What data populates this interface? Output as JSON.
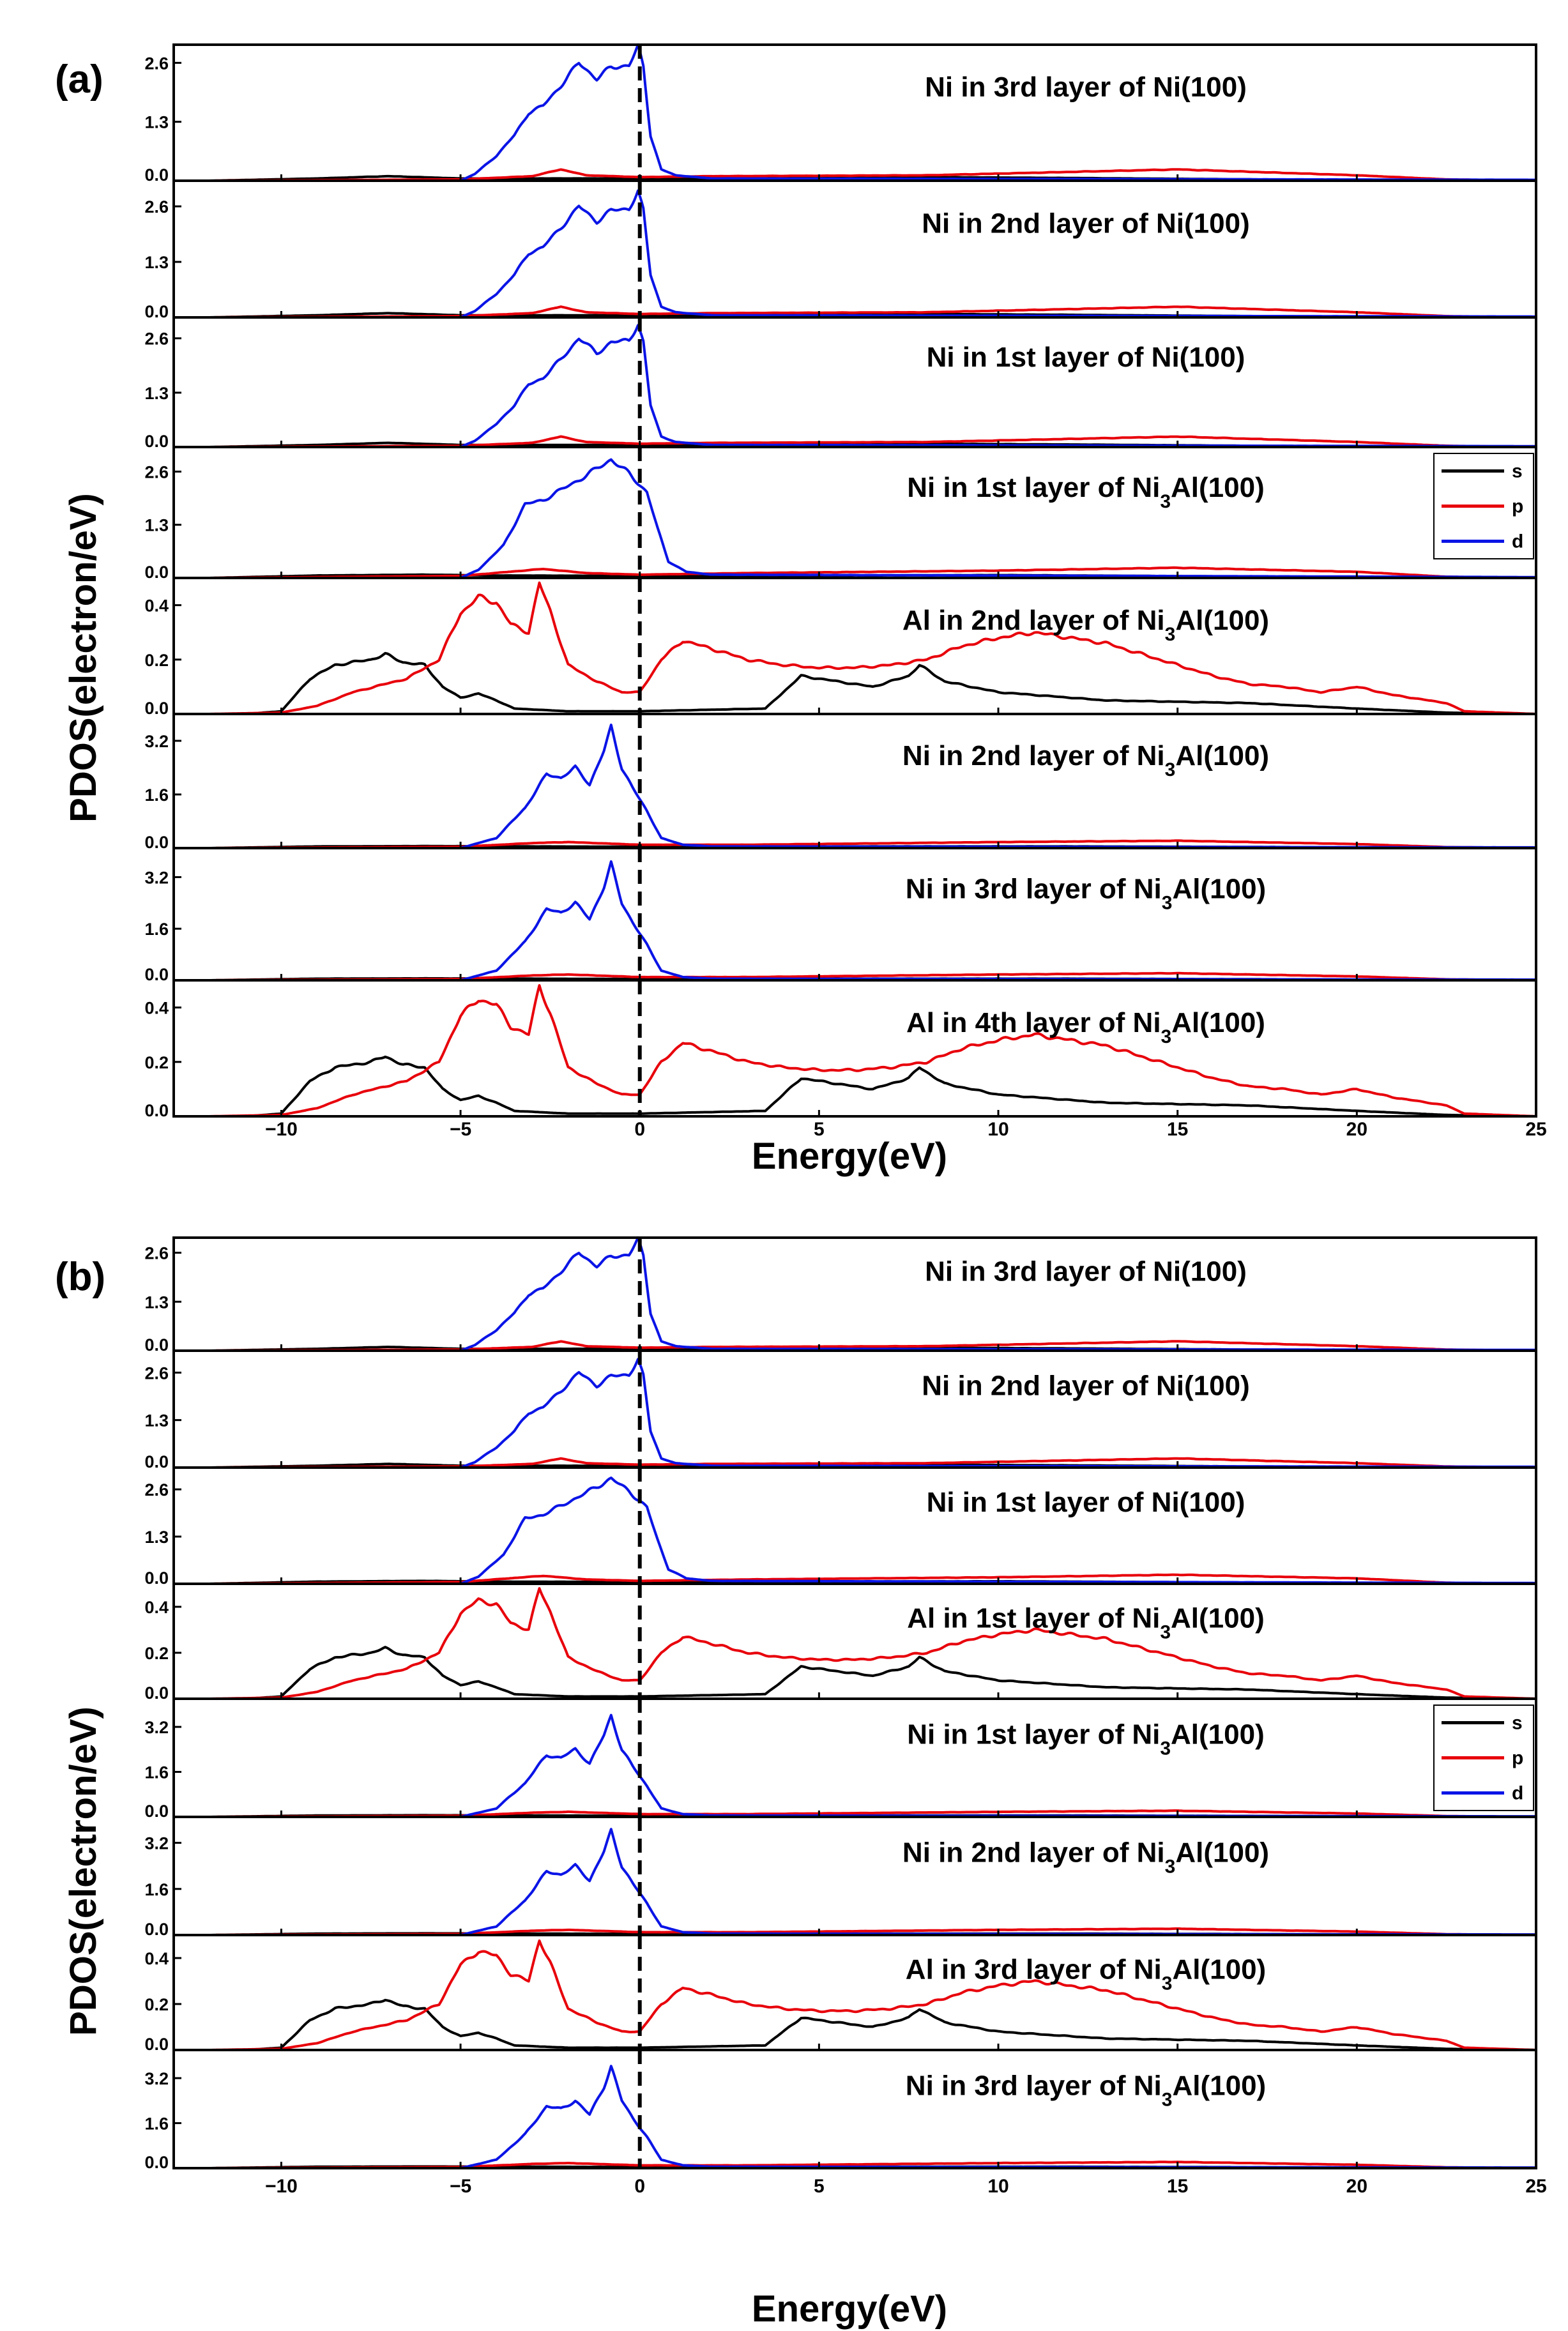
{
  "figure": {
    "xlabel": "Energy(eV)",
    "ylabel": "PDOS(electron/eV)",
    "xlim": [
      -13,
      25
    ],
    "x_ticks": [
      "−10",
      "−5",
      "0",
      "5",
      "10",
      "15",
      "20",
      "25"
    ],
    "x_tick_values": [
      -10,
      -5,
      0,
      5,
      10,
      15,
      20,
      25
    ],
    "fermi_line": 0,
    "legend_labels": [
      "s",
      "p",
      "d"
    ],
    "series_colors": {
      "s": "#000000",
      "p": "#e8000b",
      "d": "#0a14e6"
    }
  },
  "chart_data": [
    {
      "figure": "(a)",
      "type": "line",
      "panels": [
        {
          "title": "Ni in 3rd layer of Ni(100)",
          "shape": "ni",
          "ylim": [
            0,
            3.0
          ],
          "ticks": [
            0.0,
            1.3,
            2.6
          ],
          "tick_labels": [
            "0.0",
            "1.3",
            "2.6"
          ]
        },
        {
          "title": "Ni in 2nd layer of Ni(100)",
          "shape": "ni",
          "ylim": [
            0,
            3.2
          ],
          "ticks": [
            0.0,
            1.3,
            2.6
          ],
          "tick_labels": [
            "0.0",
            "1.3",
            "2.6"
          ]
        },
        {
          "title": "Ni in 1st layer of Ni(100)",
          "shape": "ni",
          "ylim": [
            0,
            3.1
          ],
          "ticks": [
            0.0,
            1.3,
            2.6
          ],
          "tick_labels": [
            "0.0",
            "1.3",
            "2.6"
          ]
        },
        {
          "title": "Ni in 1st layer of Ni3Al(100)",
          "shape": "ni3al_surf",
          "ylim": [
            0,
            3.2
          ],
          "ticks": [
            0.0,
            1.3,
            2.6
          ],
          "tick_labels": [
            "0.0",
            "1.3",
            "2.6"
          ],
          "legend": true
        },
        {
          "title": "Al in 2nd layer of Ni3Al(100)",
          "shape": "al",
          "ylim": [
            0,
            0.5
          ],
          "ticks": [
            0.0,
            0.2,
            0.4
          ],
          "tick_labels": [
            "0.0",
            "0.2",
            "0.4"
          ]
        },
        {
          "title": "Ni in 2nd layer of Ni3Al(100)",
          "shape": "ni3al",
          "ylim": [
            0,
            4.0
          ],
          "ticks": [
            0.0,
            1.6,
            3.2
          ],
          "tick_labels": [
            "0.0",
            "1.6",
            "3.2"
          ]
        },
        {
          "title": "Ni in 3rd layer of Ni3Al(100)",
          "shape": "ni3al",
          "ylim": [
            0,
            4.1
          ],
          "ticks": [
            0.0,
            1.6,
            3.2
          ],
          "tick_labels": [
            "0.0",
            "1.6",
            "3.2"
          ]
        },
        {
          "title": "Al in 4th layer of Ni3Al(100)",
          "shape": "al",
          "ylim": [
            0,
            0.5
          ],
          "ticks": [
            0.0,
            0.2,
            0.4
          ],
          "tick_labels": [
            "0.0",
            "0.2",
            "0.4"
          ]
        }
      ]
    },
    {
      "figure": "(b)",
      "type": "line",
      "panels": [
        {
          "title": "Ni in 3rd layer of Ni(100)",
          "shape": "ni",
          "ylim": [
            0,
            3.0
          ],
          "ticks": [
            0.0,
            1.3,
            2.6
          ],
          "tick_labels": [
            "0.0",
            "1.3",
            "2.6"
          ]
        },
        {
          "title": "Ni in 2nd layer of Ni(100)",
          "shape": "ni",
          "ylim": [
            0,
            3.2
          ],
          "ticks": [
            0.0,
            1.3,
            2.6
          ],
          "tick_labels": [
            "0.0",
            "1.3",
            "2.6"
          ]
        },
        {
          "title": "Ni in 1st layer of Ni(100)",
          "shape": "ni3al_surf",
          "ylim": [
            0,
            3.2
          ],
          "ticks": [
            0.0,
            1.3,
            2.6
          ],
          "tick_labels": [
            "0.0",
            "1.3",
            "2.6"
          ]
        },
        {
          "title": "Al in 1st layer of Ni3Al(100)",
          "shape": "al",
          "ylim": [
            0,
            0.5
          ],
          "ticks": [
            0.0,
            0.2,
            0.4
          ],
          "tick_labels": [
            "0.0",
            "0.2",
            "0.4"
          ]
        },
        {
          "title": "Ni in 1st layer of Ni3Al(100)",
          "shape": "ni3al",
          "ylim": [
            0,
            4.2
          ],
          "ticks": [
            0.0,
            1.6,
            3.2
          ],
          "tick_labels": [
            "0.0",
            "1.6",
            "3.2"
          ],
          "legend": true
        },
        {
          "title": "Ni in 2nd layer of Ni3Al(100)",
          "shape": "ni3al",
          "ylim": [
            0,
            4.1
          ],
          "ticks": [
            0.0,
            1.6,
            3.2
          ],
          "tick_labels": [
            "0.0",
            "1.6",
            "3.2"
          ]
        },
        {
          "title": "Al in 3rd layer of Ni3Al(100)",
          "shape": "al",
          "ylim": [
            0,
            0.5
          ],
          "ticks": [
            0.0,
            0.2,
            0.4
          ],
          "tick_labels": [
            "0.0",
            "0.2",
            "0.4"
          ]
        },
        {
          "title": "Ni in 3rd layer of Ni3Al(100)",
          "shape": "ni3al",
          "ylim": [
            0,
            4.2
          ],
          "ticks": [
            0.0,
            1.6,
            3.2
          ],
          "tick_labels": [
            "0.0",
            "1.6",
            "3.2"
          ]
        }
      ]
    }
  ],
  "curves": {
    "ni": {
      "d": [
        [
          -5,
          0
        ],
        [
          -4.6,
          0.15
        ],
        [
          -4,
          0.55
        ],
        [
          -3.5,
          1.0
        ],
        [
          -3.1,
          1.5
        ],
        [
          -2.7,
          1.65
        ],
        [
          -2.2,
          2.1
        ],
        [
          -1.7,
          2.6
        ],
        [
          -1.2,
          2.25
        ],
        [
          -0.8,
          2.5
        ],
        [
          -0.3,
          2.55
        ],
        [
          -0.05,
          2.95
        ],
        [
          0.1,
          2.5
        ],
        [
          0.3,
          1.0
        ],
        [
          0.6,
          0.25
        ],
        [
          1.0,
          0.12
        ],
        [
          2,
          0.05
        ],
        [
          25,
          0.02
        ]
      ],
      "p": [
        [
          -12,
          0
        ],
        [
          -5,
          0.03
        ],
        [
          -3,
          0.1
        ],
        [
          -2.2,
          0.25
        ],
        [
          -1.5,
          0.12
        ],
        [
          0,
          0.08
        ],
        [
          2,
          0.1
        ],
        [
          8,
          0.12
        ],
        [
          15,
          0.25
        ],
        [
          20,
          0.12
        ],
        [
          22.5,
          0.03
        ],
        [
          25,
          0
        ]
      ],
      "s": [
        [
          -12,
          0
        ],
        [
          -9,
          0.05
        ],
        [
          -7,
          0.1
        ],
        [
          -5,
          0.05
        ],
        [
          -2,
          0.05
        ],
        [
          0,
          0.05
        ],
        [
          5,
          0.06
        ],
        [
          8,
          0.08
        ],
        [
          12,
          0.06
        ],
        [
          17,
          0.03
        ],
        [
          22,
          0.01
        ],
        [
          25,
          0
        ]
      ]
    },
    "ni3al_surf": {
      "d": [
        [
          -5,
          0
        ],
        [
          -4.5,
          0.2
        ],
        [
          -3.8,
          0.8
        ],
        [
          -3.2,
          1.8
        ],
        [
          -2.7,
          1.9
        ],
        [
          -2.1,
          2.2
        ],
        [
          -1.5,
          2.5
        ],
        [
          -0.8,
          2.9
        ],
        [
          -0.3,
          2.55
        ],
        [
          0.2,
          2.1
        ],
        [
          0.5,
          1.2
        ],
        [
          0.8,
          0.4
        ],
        [
          1.3,
          0.15
        ],
        [
          2,
          0.08
        ],
        [
          25,
          0.02
        ]
      ],
      "p": [
        [
          -12,
          0
        ],
        [
          -5,
          0.05
        ],
        [
          -2.7,
          0.22
        ],
        [
          -1.5,
          0.12
        ],
        [
          0,
          0.08
        ],
        [
          3,
          0.12
        ],
        [
          10,
          0.18
        ],
        [
          15,
          0.25
        ],
        [
          20,
          0.15
        ],
        [
          22.5,
          0.03
        ],
        [
          25,
          0
        ]
      ],
      "s": [
        [
          -12,
          0
        ],
        [
          -9,
          0.06
        ],
        [
          -6,
          0.08
        ],
        [
          -4,
          0.06
        ],
        [
          0,
          0.05
        ],
        [
          5,
          0.06
        ],
        [
          10,
          0.07
        ],
        [
          16,
          0.04
        ],
        [
          22,
          0.01
        ],
        [
          25,
          0
        ]
      ]
    },
    "ni3al": {
      "d": [
        [
          -5,
          0
        ],
        [
          -4,
          0.3
        ],
        [
          -3.2,
          1.2
        ],
        [
          -2.6,
          2.2
        ],
        [
          -2.2,
          2.1
        ],
        [
          -1.8,
          2.4
        ],
        [
          -1.4,
          1.9
        ],
        [
          -1.0,
          2.9
        ],
        [
          -0.8,
          3.6
        ],
        [
          -0.5,
          2.4
        ],
        [
          -0.2,
          1.8
        ],
        [
          0.2,
          1.1
        ],
        [
          0.6,
          0.3
        ],
        [
          1.2,
          0.1
        ],
        [
          2,
          0.05
        ],
        [
          25,
          0.02
        ]
      ],
      "p": [
        [
          -12,
          0
        ],
        [
          -5,
          0.04
        ],
        [
          -3,
          0.15
        ],
        [
          -2,
          0.18
        ],
        [
          0,
          0.1
        ],
        [
          3,
          0.1
        ],
        [
          10,
          0.18
        ],
        [
          15,
          0.22
        ],
        [
          20,
          0.12
        ],
        [
          22.5,
          0.03
        ],
        [
          25,
          0
        ]
      ],
      "s": [
        [
          -12,
          0
        ],
        [
          -9,
          0.05
        ],
        [
          -6,
          0.06
        ],
        [
          -3,
          0.05
        ],
        [
          0,
          0.04
        ],
        [
          6,
          0.05
        ],
        [
          12,
          0.05
        ],
        [
          18,
          0.03
        ],
        [
          22,
          0.01
        ],
        [
          25,
          0
        ]
      ]
    },
    "al": {
      "s": [
        [
          -11,
          0
        ],
        [
          -10,
          0.01
        ],
        [
          -9.2,
          0.13
        ],
        [
          -8.5,
          0.18
        ],
        [
          -7.5,
          0.2
        ],
        [
          -7.1,
          0.22
        ],
        [
          -6.6,
          0.19
        ],
        [
          -6.0,
          0.18
        ],
        [
          -5.5,
          0.1
        ],
        [
          -5.0,
          0.06
        ],
        [
          -4.5,
          0.075
        ],
        [
          -4.0,
          0.05
        ],
        [
          -3.5,
          0.02
        ],
        [
          -2,
          0.01
        ],
        [
          0,
          0.01
        ],
        [
          3.5,
          0.02
        ],
        [
          4.5,
          0.14
        ],
        [
          5.5,
          0.12
        ],
        [
          6.5,
          0.1
        ],
        [
          7.5,
          0.14
        ],
        [
          7.8,
          0.18
        ],
        [
          8.5,
          0.12
        ],
        [
          10,
          0.08
        ],
        [
          13,
          0.05
        ],
        [
          17,
          0.04
        ],
        [
          20,
          0.02
        ],
        [
          22.5,
          0.005
        ],
        [
          25,
          0
        ]
      ],
      "p": [
        [
          -12,
          0
        ],
        [
          -10,
          0.005
        ],
        [
          -9,
          0.03
        ],
        [
          -8,
          0.08
        ],
        [
          -6.5,
          0.13
        ],
        [
          -5.6,
          0.2
        ],
        [
          -5,
          0.37
        ],
        [
          -4.5,
          0.43
        ],
        [
          -4,
          0.41
        ],
        [
          -3.6,
          0.33
        ],
        [
          -3.1,
          0.3
        ],
        [
          -2.8,
          0.48
        ],
        [
          -2.5,
          0.38
        ],
        [
          -2,
          0.18
        ],
        [
          -1.2,
          0.12
        ],
        [
          -0.5,
          0.08
        ],
        [
          0,
          0.08
        ],
        [
          0.6,
          0.2
        ],
        [
          1.2,
          0.27
        ],
        [
          2,
          0.24
        ],
        [
          3,
          0.2
        ],
        [
          4,
          0.18
        ],
        [
          5,
          0.17
        ],
        [
          6,
          0.17
        ],
        [
          7,
          0.18
        ],
        [
          8,
          0.2
        ],
        [
          9,
          0.25
        ],
        [
          10,
          0.28
        ],
        [
          11,
          0.3
        ],
        [
          12,
          0.28
        ],
        [
          13,
          0.26
        ],
        [
          14,
          0.22
        ],
        [
          15,
          0.18
        ],
        [
          16,
          0.14
        ],
        [
          17,
          0.11
        ],
        [
          18,
          0.1
        ],
        [
          19,
          0.08
        ],
        [
          20,
          0.1
        ],
        [
          21,
          0.07
        ],
        [
          22,
          0.05
        ],
        [
          22.5,
          0.04
        ],
        [
          23,
          0.01
        ],
        [
          25,
          0
        ]
      ]
    }
  }
}
